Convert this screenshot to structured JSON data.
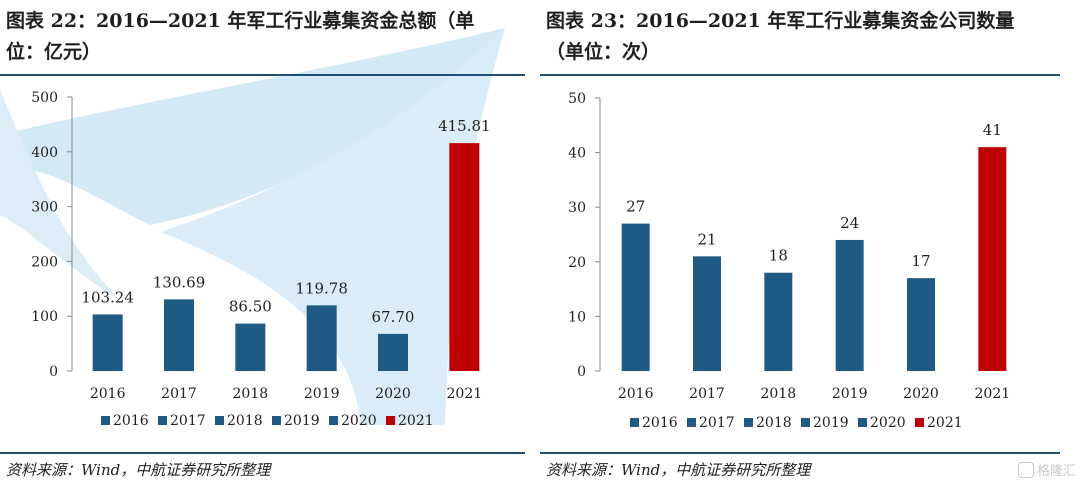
{
  "colors": {
    "bar": "#1f5a85",
    "highlight": "#c00000",
    "rule": "#1f4e79",
    "watermark": "#cfe6f5"
  },
  "watermark": {
    "text": "格隆汇"
  },
  "panels": [
    {
      "title_line1": "图表 22：2016—2021 年军工行业募集资金总额（单",
      "title_line2": "位：亿元）",
      "source": "资料来源：Wind，中航证券研究所整理",
      "chart_data": {
        "type": "bar",
        "categories": [
          "2016",
          "2017",
          "2018",
          "2019",
          "2020",
          "2021"
        ],
        "values": [
          103.24,
          130.69,
          86.5,
          119.78,
          67.7,
          415.81
        ],
        "value_labels": [
          "103.24",
          "130.69",
          "86.50",
          "119.78",
          "67.70",
          "415.81"
        ],
        "ylim": [
          0,
          500
        ],
        "yticks": [
          0,
          100,
          200,
          300,
          400,
          500
        ],
        "highlight_index": 5,
        "legend": [
          "2016",
          "2017",
          "2018",
          "2019",
          "2020",
          "2021"
        ],
        "legend_placement": "bottom",
        "grid": false
      }
    },
    {
      "title_line1": "图表 23：2016—2021 年军工行业募集资金公司数量",
      "title_line2": "（单位：次）",
      "source": "资料来源：Wind，中航证券研究所整理",
      "chart_data": {
        "type": "bar",
        "categories": [
          "2016",
          "2017",
          "2018",
          "2019",
          "2020",
          "2021"
        ],
        "values": [
          27,
          21,
          18,
          24,
          17,
          41
        ],
        "value_labels": [
          "27",
          "21",
          "18",
          "24",
          "17",
          "41"
        ],
        "ylim": [
          0,
          50
        ],
        "yticks": [
          0,
          10,
          20,
          30,
          40,
          50
        ],
        "highlight_index": 5,
        "legend": [
          "2016",
          "2017",
          "2018",
          "2019",
          "2020",
          "2021"
        ],
        "legend_placement": "bottom",
        "grid": false
      }
    }
  ]
}
